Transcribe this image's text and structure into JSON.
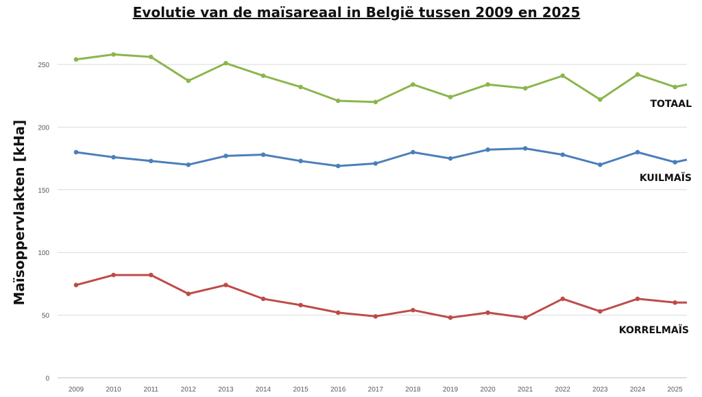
{
  "chart_data": {
    "type": "line",
    "title": "Evolutie van de maïsareaal in België tussen 2009 en 2025",
    "ylabel": "Maïsoppervlakten [kHa]",
    "xlabel": "",
    "ylim": [
      0,
      250
    ],
    "yticks": [
      0,
      50,
      100,
      150,
      200,
      250
    ],
    "grid": true,
    "categories": [
      "2009",
      "2010",
      "2011",
      "2012",
      "2013",
      "2014",
      "2015",
      "2016",
      "2017",
      "2018",
      "2019",
      "2020",
      "2021",
      "2022",
      "2023",
      "2024",
      "2025"
    ],
    "series": [
      {
        "name": "TOTAAL",
        "color": "#8cb54b",
        "values": [
          254,
          258,
          256,
          237,
          251,
          241,
          232,
          221,
          220,
          234,
          224,
          234,
          231,
          241,
          222,
          242,
          232
        ]
      },
      {
        "name": "KUILMAÏS",
        "color": "#4a7ebb",
        "values": [
          180,
          176,
          173,
          170,
          177,
          178,
          173,
          169,
          171,
          180,
          175,
          182,
          183,
          178,
          170,
          180,
          172
        ]
      },
      {
        "name": "KORRELMAÏS",
        "color": "#be4b48",
        "values": [
          74,
          82,
          82,
          67,
          74,
          63,
          58,
          52,
          49,
          54,
          48,
          52,
          48,
          63,
          53,
          63,
          60
        ]
      }
    ]
  }
}
